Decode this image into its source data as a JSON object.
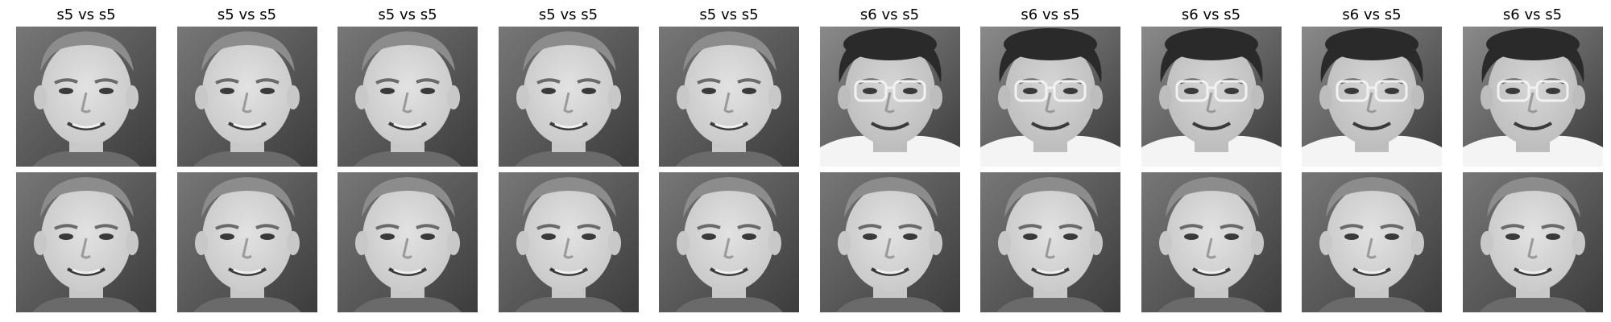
{
  "figure": {
    "columns": [
      {
        "title": "s5 vs s5",
        "top": {
          "subject": "s5",
          "glasses": false,
          "tone": "light"
        },
        "bottom": {
          "subject": "s5",
          "glasses": false,
          "tone": "light"
        }
      },
      {
        "title": "s5 vs s5",
        "top": {
          "subject": "s5",
          "glasses": false,
          "tone": "light"
        },
        "bottom": {
          "subject": "s5",
          "glasses": false,
          "tone": "light"
        }
      },
      {
        "title": "s5 vs s5",
        "top": {
          "subject": "s5",
          "glasses": false,
          "tone": "light"
        },
        "bottom": {
          "subject": "s5",
          "glasses": false,
          "tone": "light"
        }
      },
      {
        "title": "s5 vs s5",
        "top": {
          "subject": "s5",
          "glasses": false,
          "tone": "light"
        },
        "bottom": {
          "subject": "s5",
          "glasses": false,
          "tone": "light"
        }
      },
      {
        "title": "s5 vs s5",
        "top": {
          "subject": "s5",
          "glasses": false,
          "tone": "light"
        },
        "bottom": {
          "subject": "s5",
          "glasses": false,
          "tone": "light"
        }
      },
      {
        "title": "s6 vs s5",
        "top": {
          "subject": "s6",
          "glasses": true,
          "tone": "dark"
        },
        "bottom": {
          "subject": "s5",
          "glasses": false,
          "tone": "light"
        }
      },
      {
        "title": "s6 vs s5",
        "top": {
          "subject": "s6",
          "glasses": true,
          "tone": "dark"
        },
        "bottom": {
          "subject": "s5",
          "glasses": false,
          "tone": "light"
        }
      },
      {
        "title": "s6 vs s5",
        "top": {
          "subject": "s6",
          "glasses": true,
          "tone": "dark"
        },
        "bottom": {
          "subject": "s5",
          "glasses": false,
          "tone": "light"
        }
      },
      {
        "title": "s6 vs s5",
        "top": {
          "subject": "s6",
          "glasses": true,
          "tone": "dark"
        },
        "bottom": {
          "subject": "s5",
          "glasses": false,
          "tone": "light"
        }
      },
      {
        "title": "s6 vs s5",
        "top": {
          "subject": "s6",
          "glasses": true,
          "tone": "dark"
        },
        "bottom": {
          "subject": "s5",
          "glasses": false,
          "tone": "light"
        }
      }
    ]
  }
}
